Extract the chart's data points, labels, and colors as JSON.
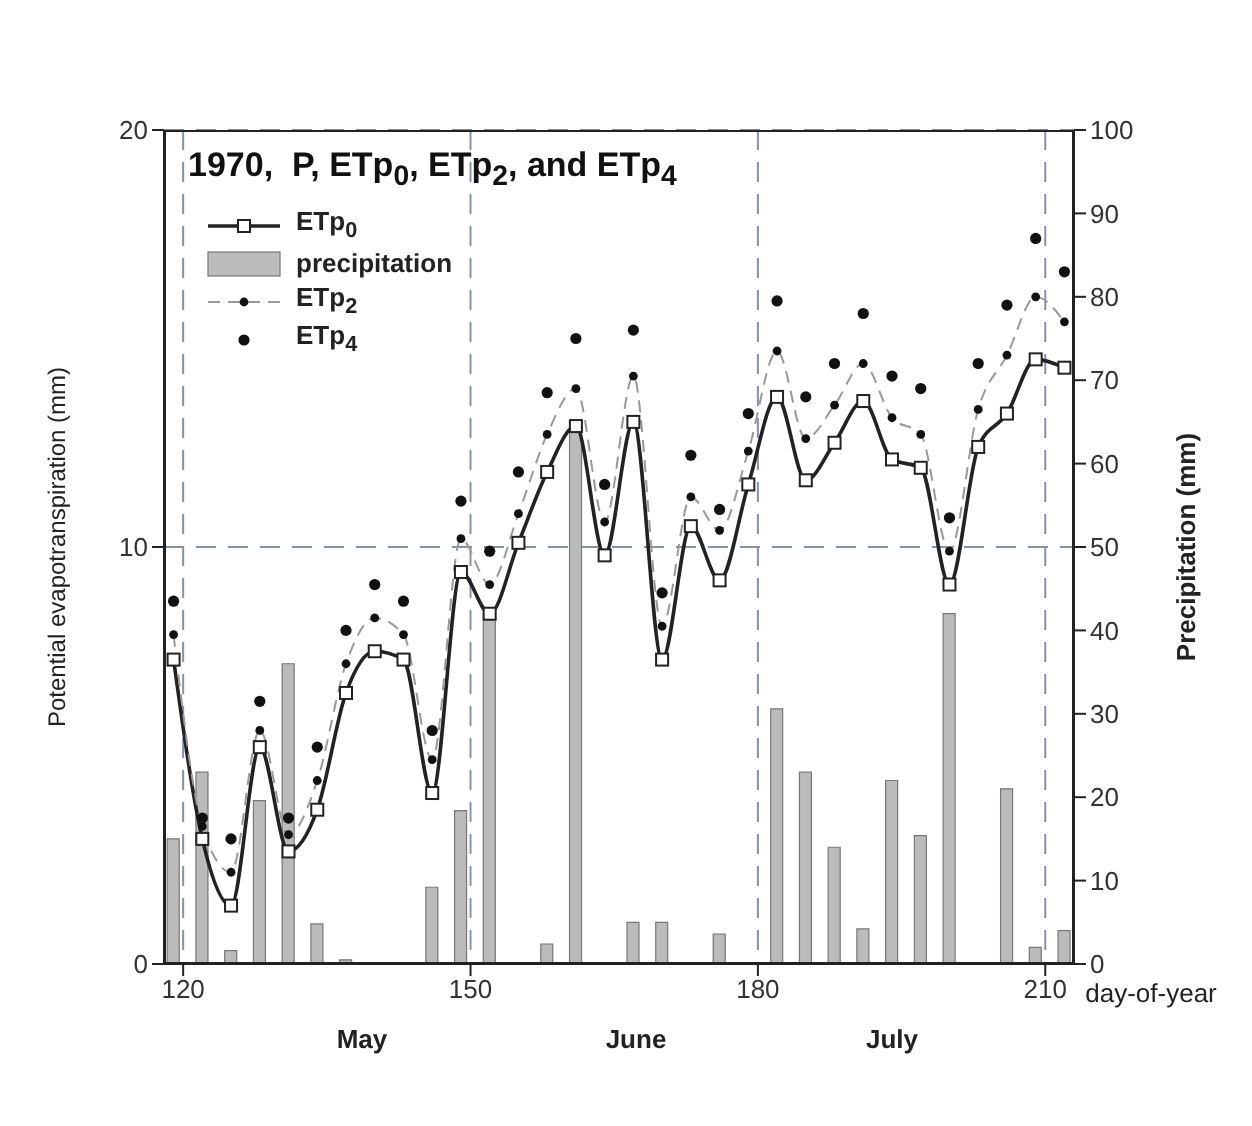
{
  "chart_data": {
    "type": "line",
    "title": "1970,  P, ETp$_{0}$, ETp$_{2}$, and ETp$_{4}$",
    "xlabel": "day-of-year",
    "ylabel": "Potential evapotranspiration (mm)",
    "y2label": "Precipitation (mm)",
    "x": [
      119,
      122,
      125,
      128,
      131,
      134,
      137,
      140,
      143,
      146,
      149,
      152,
      155,
      158,
      161,
      164,
      167,
      170,
      173,
      176,
      179,
      182,
      185,
      188,
      191,
      194,
      197,
      200,
      203,
      206,
      209,
      212
    ],
    "series": [
      {
        "name": "ETp$_{0}$",
        "color": "#222222",
        "marker": "square",
        "line_style": "solid",
        "values": [
          7.3,
          3.0,
          1.4,
          5.2,
          2.7,
          3.7,
          6.5,
          7.5,
          7.3,
          4.1,
          9.4,
          8.4,
          10.1,
          11.8,
          12.9,
          9.8,
          13.0,
          7.3,
          10.5,
          9.2,
          11.5,
          13.6,
          11.6,
          12.5,
          13.5,
          12.1,
          11.9,
          9.1,
          12.4,
          13.2,
          14.5,
          14.3
        ]
      },
      {
        "name": "precipitation",
        "type": "bar",
        "axis": "y2",
        "color": "#bbbbbb",
        "values": [
          15,
          23,
          1.6,
          19.6,
          36,
          4.8,
          0.5,
          0,
          0,
          9.2,
          18.4,
          42,
          0,
          2.4,
          64,
          0,
          5,
          5,
          0,
          3.6,
          0,
          30.6,
          23,
          14,
          4.2,
          22,
          15.4,
          42,
          0,
          21,
          2,
          4
        ]
      },
      {
        "name": "ETp$_{2}$",
        "type": "line",
        "color": "#999999",
        "marker": "circle",
        "line_style": "dashed",
        "values": [
          7.9,
          3.3,
          2.2,
          5.6,
          3.1,
          4.4,
          7.2,
          8.3,
          7.9,
          4.9,
          10.2,
          9.1,
          10.8,
          12.7,
          13.8,
          10.6,
          14.1,
          8.1,
          11.2,
          10.4,
          12.3,
          14.7,
          12.6,
          13.4,
          14.4,
          13.1,
          12.7,
          9.9,
          13.3,
          14.6,
          16.0,
          15.4
        ]
      },
      {
        "name": "ETp$_{4}$",
        "type": "scatter",
        "color": "#111111",
        "marker": "circle",
        "values": [
          8.7,
          3.5,
          3.0,
          6.3,
          3.5,
          5.2,
          8.0,
          9.1,
          8.7,
          5.6,
          11.1,
          9.9,
          11.8,
          13.7,
          15.0,
          11.5,
          15.2,
          8.9,
          12.2,
          10.9,
          13.2,
          15.9,
          13.6,
          14.4,
          15.6,
          14.1,
          13.8,
          10.7,
          14.4,
          15.8,
          17.4,
          16.6
        ]
      }
    ],
    "xlim": [
      118,
      213
    ],
    "xticks": [
      120,
      150,
      180,
      210
    ],
    "ylim": [
      0,
      20
    ],
    "yticks": [
      0,
      10,
      20
    ],
    "y2lim": [
      0,
      100
    ],
    "y2ticks": [
      0,
      10,
      20,
      30,
      40,
      50,
      60,
      70,
      80,
      90,
      100
    ],
    "grid": true,
    "legend": "top left",
    "annotations": [
      "May",
      "June",
      "July"
    ]
  }
}
